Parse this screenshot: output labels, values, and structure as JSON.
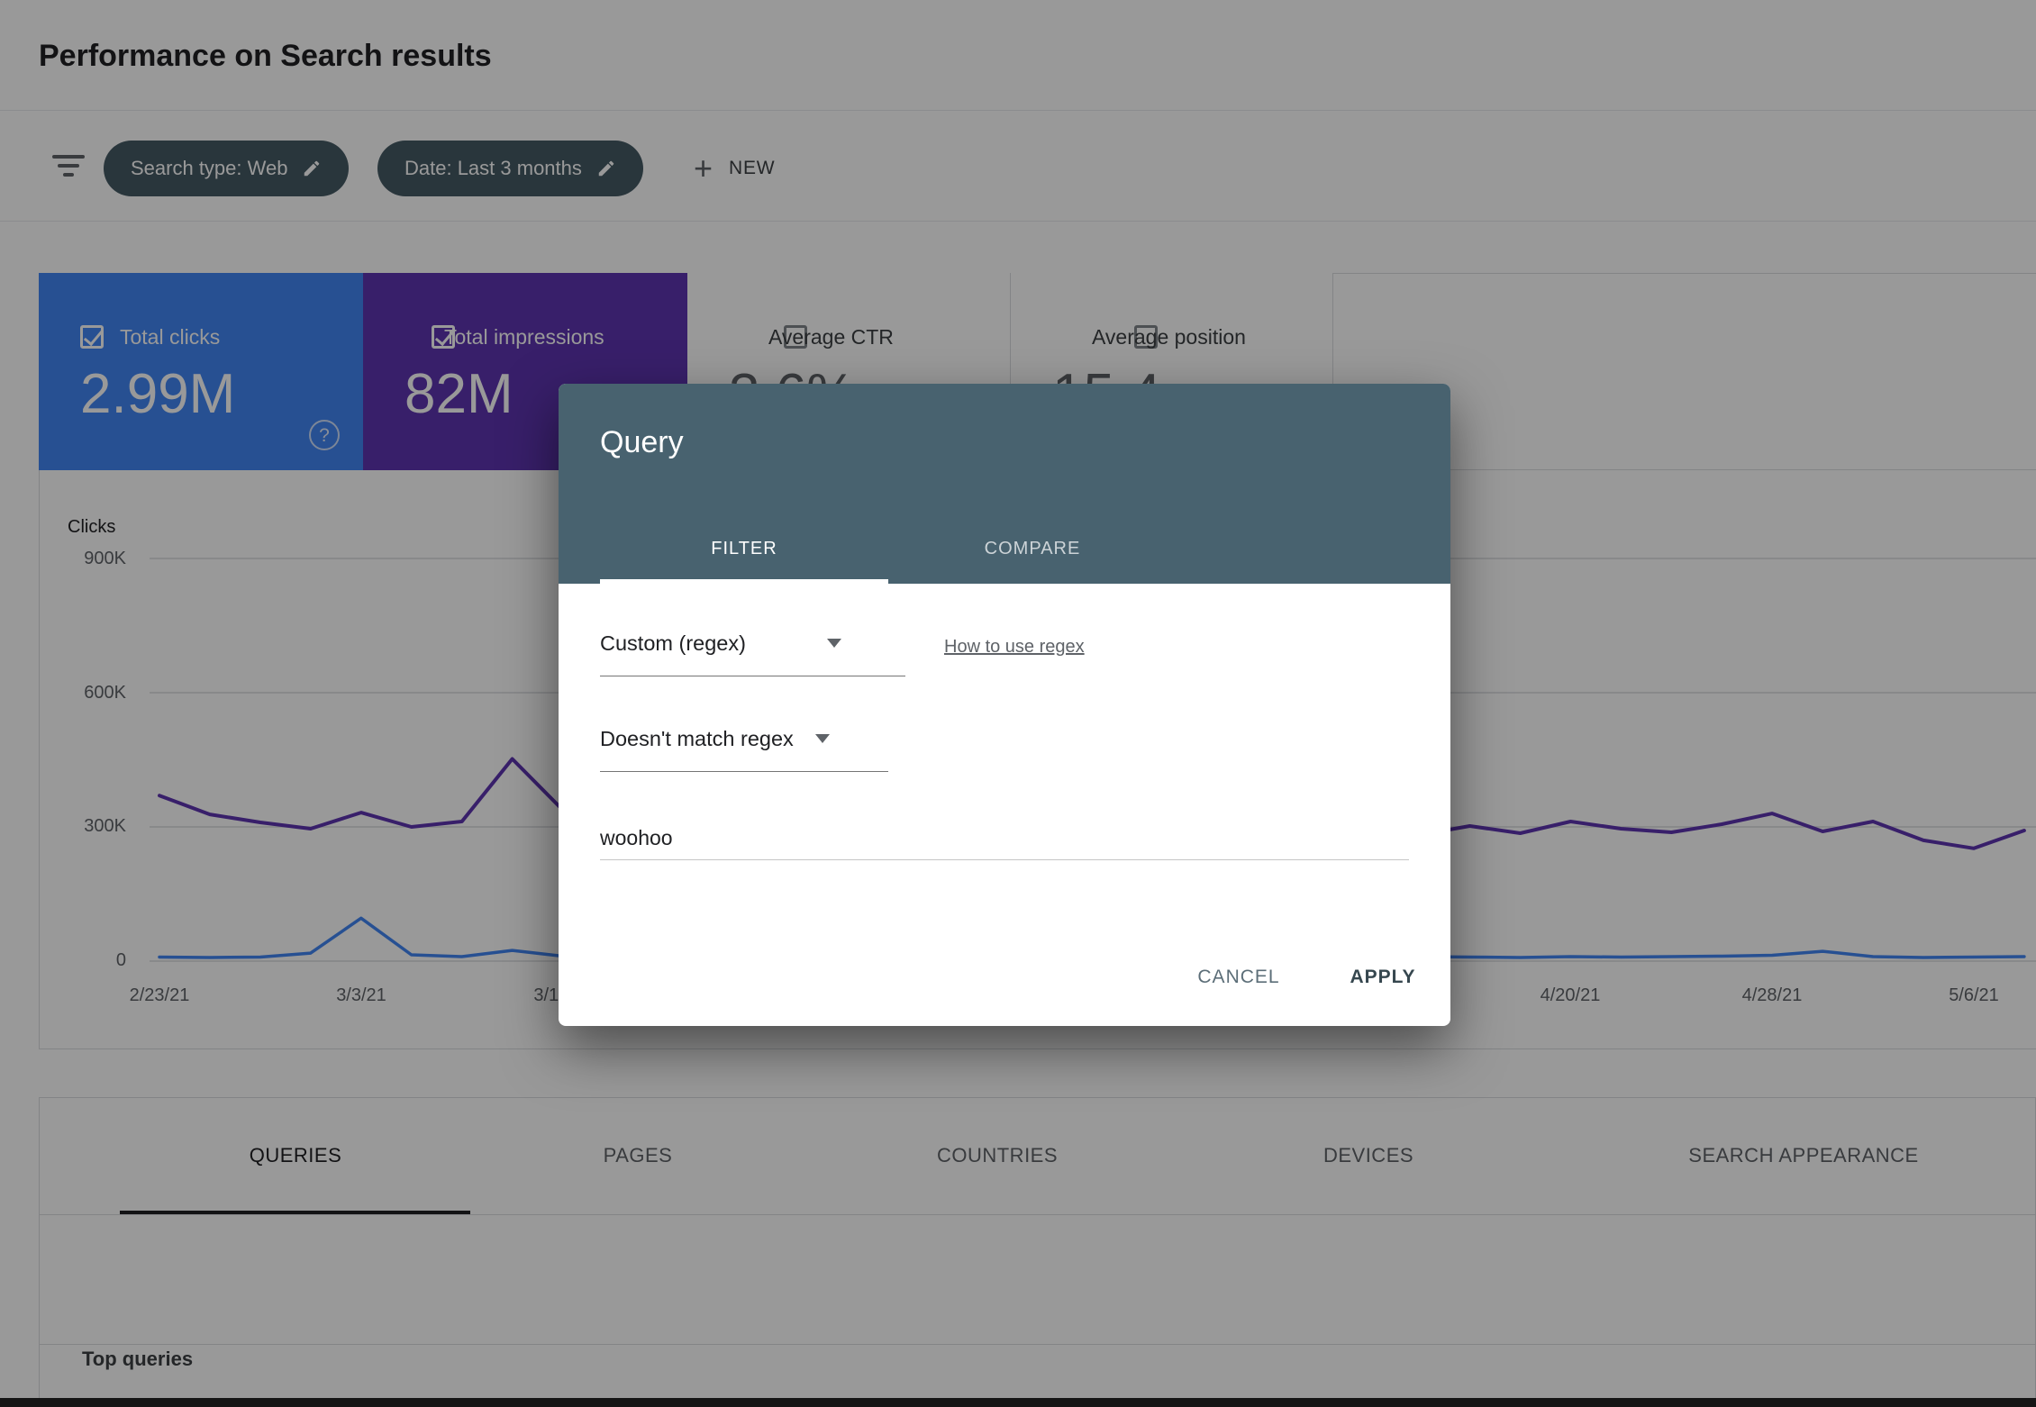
{
  "header": {
    "title": "Performance on Search results"
  },
  "filters": {
    "chips": [
      {
        "label": "Search type: Web"
      },
      {
        "label": "Date: Last 3 months"
      }
    ],
    "new_plus": "+",
    "new_button": "NEW"
  },
  "metrics": {
    "help_glyph": "?",
    "tiles": [
      {
        "label": "Total clicks",
        "value": "2.99M",
        "checked": true,
        "color": "#4285f4"
      },
      {
        "label": "Total impressions",
        "value": "82M",
        "checked": true,
        "color": "#5e35b1"
      },
      {
        "label": "Average CTR",
        "value": "3.6%",
        "checked": false
      },
      {
        "label": "Average position",
        "value": "15.4",
        "checked": false
      }
    ]
  },
  "chart_data": {
    "type": "line",
    "ylabel": "Clicks",
    "y_ticks": [
      "900K",
      "600K",
      "300K",
      "0"
    ],
    "ylim": [
      0,
      900
    ],
    "unit": "K",
    "grid": true,
    "x_ticks": [
      "2/23/21",
      "3/3/21",
      "3/11/21",
      "4/20/21",
      "4/28/21",
      "5/6/21"
    ],
    "x_tick_days": [
      0,
      8,
      16,
      56,
      64,
      72
    ],
    "x_step_days": 2,
    "series": [
      {
        "name": "Total clicks",
        "color": "#4285f4",
        "values": [
          9,
          8,
          9,
          18,
          96,
          14,
          10,
          24,
          11,
          9,
          10,
          8,
          9,
          10,
          8,
          9,
          10,
          9,
          8,
          9,
          10,
          9,
          8,
          10,
          9,
          10,
          9,
          8,
          10,
          9,
          10,
          11,
          13,
          22,
          10,
          8,
          9,
          10
        ]
      },
      {
        "name": "Total impressions",
        "color": "#5e35b1",
        "values": [
          370,
          328,
          310,
          296,
          332,
          300,
          312,
          452,
          338,
          312,
          322,
          300,
          312,
          290,
          306,
          296,
          312,
          300,
          290,
          306,
          296,
          302,
          290,
          300,
          312,
          282,
          302,
          286,
          312,
          296,
          288,
          306,
          330,
          290,
          312,
          270,
          252,
          292
        ]
      }
    ]
  },
  "dialog": {
    "title": "Query",
    "tabs": [
      {
        "label": "FILTER",
        "active": true
      },
      {
        "label": "COMPARE",
        "active": false
      }
    ],
    "filter_type": "Custom (regex)",
    "regex_help_link": "How to use regex",
    "match_type": "Doesn't match regex",
    "input_value": "woohoo",
    "cancel_label": "CANCEL",
    "apply_label": "APPLY"
  },
  "bottom_tabs": [
    "QUERIES",
    "PAGES",
    "COUNTRIES",
    "DEVICES",
    "SEARCH APPEARANCE"
  ],
  "table": {
    "header": "Top queries"
  },
  "icons": {
    "filter-list-icon": "three stacked bars",
    "edit-pencil-icon": "material edit pencil",
    "plus-icon": "+",
    "checkbox-checked-icon": "white outlined box with check",
    "checkbox-unchecked-icon": "gray outlined empty box",
    "help-circle-icon": "? in circle",
    "dropdown-caret-icon": "down triangle"
  }
}
